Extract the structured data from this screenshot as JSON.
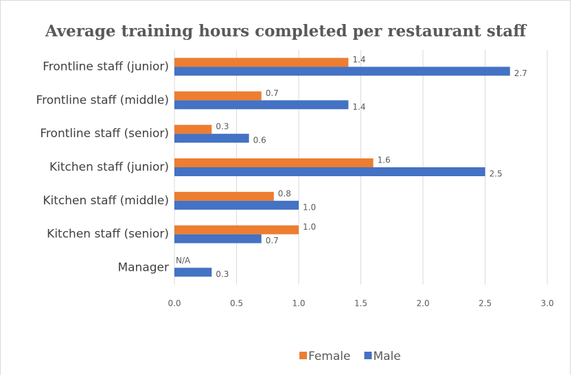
{
  "chart_data": {
    "type": "barh",
    "title": "Average training hours completed per restaurant staff",
    "categories": [
      "Frontline staff (junior)",
      "Frontline staff (middle)",
      "Frontline staff (senior)",
      "Kitchen staff (junior)",
      "Kitchen staff (middle)",
      "Kitchen staff (senior)",
      "Manager"
    ],
    "series": [
      {
        "name": "Female",
        "color": "#ED7D31",
        "values": [
          1.4,
          0.7,
          0.3,
          1.6,
          0.8,
          1.0,
          null
        ],
        "value_labels": [
          "1.4",
          "0.7",
          "0.3",
          "1.6",
          "0.8",
          "1.0",
          "N/A"
        ]
      },
      {
        "name": "Male",
        "color": "#4472C4",
        "values": [
          2.7,
          1.4,
          0.6,
          2.5,
          1.0,
          0.7,
          0.3
        ],
        "value_labels": [
          "2.7",
          "1.4",
          "0.6",
          "2.5",
          "1.0",
          "0.7",
          "0.3"
        ]
      }
    ],
    "xlim": [
      0,
      3
    ],
    "xticks": [
      {
        "value": 0,
        "label": "0.0"
      },
      0.5,
      {
        "value": 1,
        "label": "1.0"
      },
      1.5,
      {
        "value": 2,
        "label": "2.0"
      },
      2.5,
      {
        "value": 3,
        "label": "3.0"
      }
    ],
    "grid": true,
    "legend": "bottom"
  }
}
